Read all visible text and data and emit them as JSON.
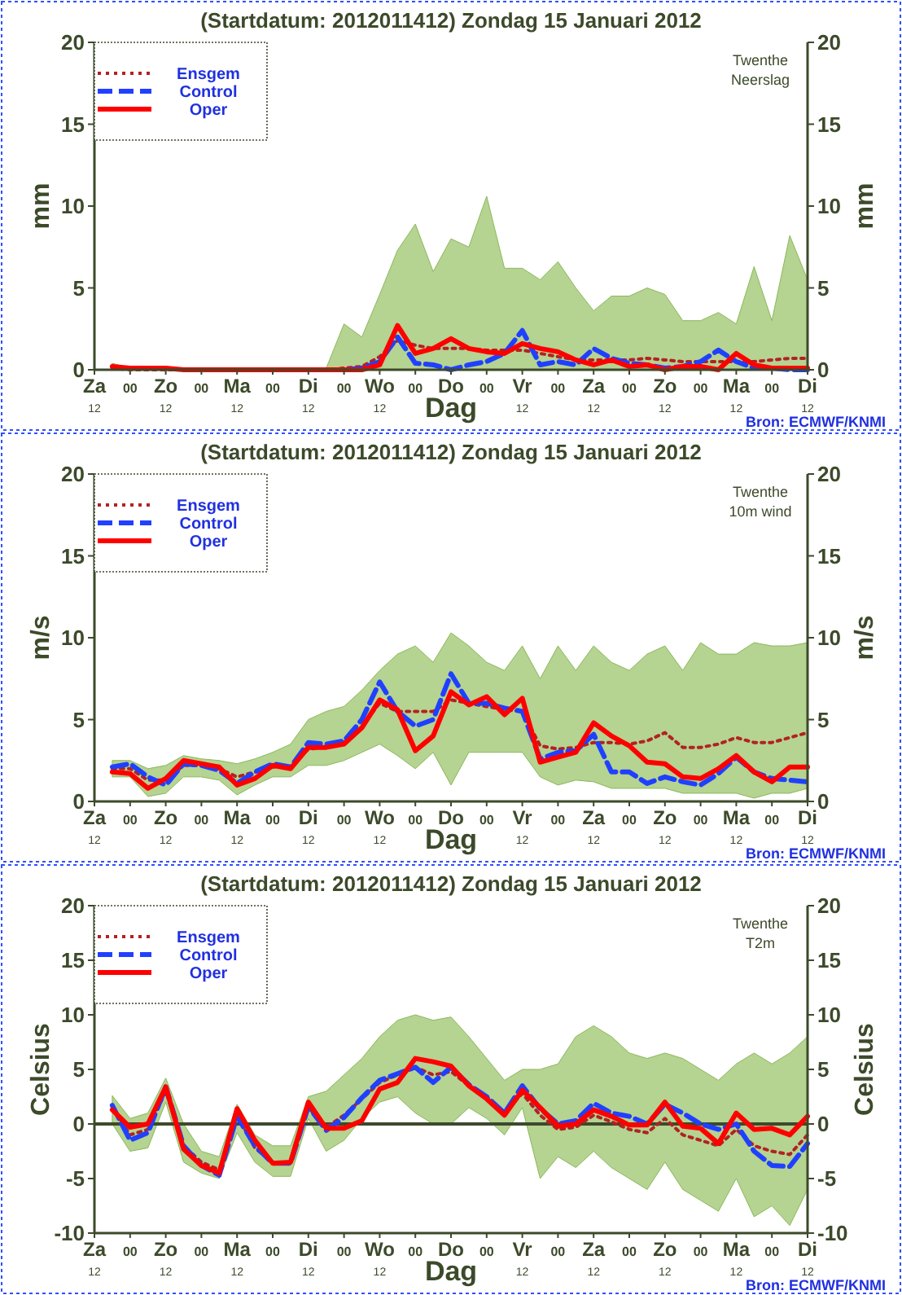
{
  "chart_data": [
    {
      "type": "line",
      "title": "(Startdatum: 2012011412)   Zondag    15 Januari   2012",
      "xlabel": "Dag",
      "ylabel": "mm",
      "y2label": "mm",
      "legend": "top left",
      "annotations": [
        "Twenthe",
        "Neerslag",
        "Bron: ECMWF/KNMI"
      ],
      "ylim": [
        0,
        20
      ],
      "yticks": [
        0,
        5,
        10,
        15,
        20
      ],
      "y2lim": [
        0,
        20
      ],
      "y2ticks": [
        0,
        5,
        10,
        15,
        20
      ],
      "categories": [
        "Za$_{12}$",
        null,
        "00",
        null,
        "Zo$_{12}$",
        null,
        "00",
        null,
        "Ma$_{12}$",
        null,
        "00",
        null,
        "Di$_{12}$",
        null,
        "00",
        null,
        "Wo$_{12}$",
        null,
        "00",
        null,
        "Do",
        null,
        "00",
        null,
        "Vr$_{12}$",
        null,
        "00",
        null,
        "Za$_{12}$",
        null,
        "00",
        null,
        "Zo$_{12}$",
        null,
        "00",
        null,
        "Ma$_{12}$",
        null,
        "00",
        null,
        "Di$_{12}$"
      ],
      "series": [
        {
          "name": "Ensgem",
          "color": "#b22222",
          "line_style": "dotted",
          "values": [
            null,
            0.1,
            0,
            0,
            0,
            0,
            0,
            0,
            0,
            0,
            0,
            0,
            0,
            0,
            0.1,
            0.2,
            0.8,
            1.8,
            1.5,
            1.3,
            1.3,
            1.3,
            1.2,
            1.2,
            1.2,
            1.0,
            0.8,
            0.6,
            0.6,
            0.6,
            0.6,
            0.7,
            0.6,
            0.5,
            0.5,
            0.5,
            0.5,
            0.5,
            0.6,
            0.7,
            0.7
          ],
          "lower": [
            null,
            0,
            0,
            0,
            0,
            0,
            0,
            0,
            0,
            0,
            0,
            0,
            0,
            0,
            0,
            0,
            0,
            0,
            0,
            0,
            0,
            0,
            0,
            0,
            0,
            0,
            0,
            0,
            0,
            0,
            0,
            0,
            0,
            0,
            0,
            0,
            0,
            0,
            0,
            0,
            0
          ],
          "upper": [
            null,
            0.4,
            0.1,
            0.1,
            0.1,
            0.1,
            0.1,
            0.1,
            0.1,
            0.1,
            0.1,
            0.1,
            0.1,
            0.1,
            2.8,
            2.0,
            4.6,
            7.3,
            8.9,
            6.0,
            8.0,
            7.5,
            10.6,
            6.2,
            6.2,
            5.5,
            6.6,
            5.0,
            3.6,
            4.5,
            4.5,
            5.0,
            4.6,
            3.0,
            3.0,
            3.5,
            2.8,
            6.3,
            3.0,
            8.2,
            5.5
          ]
        },
        {
          "name": "Control",
          "color": "#2040ff",
          "line_style": "dashed",
          "values": [
            null,
            null,
            null,
            null,
            null,
            null,
            null,
            null,
            null,
            null,
            null,
            null,
            null,
            0,
            0,
            0.1,
            0.5,
            2.0,
            0.4,
            0.3,
            0,
            0.3,
            0.5,
            1.0,
            2.4,
            0.3,
            0.5,
            0.3,
            1.3,
            0.7,
            0.4,
            0.3,
            0.1,
            0.2,
            0.5,
            1.2,
            0.5,
            0.1,
            0.1,
            0,
            0
          ]
        },
        {
          "name": "Oper",
          "color": "#ff0000",
          "line_style": "solid",
          "values": [
            null,
            0.2,
            0.1,
            0.1,
            0.1,
            0,
            0,
            0,
            0,
            0,
            0,
            0,
            0,
            0,
            0,
            0,
            0.3,
            2.7,
            1.0,
            1.3,
            1.9,
            1.3,
            1.1,
            1.0,
            1.6,
            1.3,
            1.1,
            0.6,
            0.3,
            0.6,
            0.2,
            0.3,
            0,
            0.2,
            0.2,
            0,
            1.0,
            0.3,
            0.1,
            0.1,
            0.1
          ]
        }
      ]
    },
    {
      "type": "line",
      "title": "(Startdatum: 2012011412)   Zondag    15 Januari   2012",
      "xlabel": "Dag",
      "ylabel": "m/s",
      "y2label": "m/s",
      "legend": "top left",
      "annotations": [
        "Twenthe",
        "10m wind",
        "Bron: ECMWF/KNMI"
      ],
      "ylim": [
        0,
        20
      ],
      "yticks": [
        0,
        5,
        10,
        15,
        20
      ],
      "y2lim": [
        0,
        20
      ],
      "y2ticks": [
        0,
        5,
        10,
        15,
        20
      ],
      "categories": [
        "Za$_{12}$",
        null,
        "00",
        null,
        "Zo$_{12}$",
        null,
        "00",
        null,
        "Ma$_{12}$",
        null,
        "00",
        null,
        "Di$_{12}$",
        null,
        "00",
        null,
        "Wo$_{12}$",
        null,
        "00",
        null,
        "Do",
        null,
        "00",
        null,
        "Vr$_{12}$",
        null,
        "00",
        null,
        "Za$_{12}$",
        null,
        "00",
        null,
        "Zo$_{12}$",
        null,
        "00",
        null,
        "Ma$_{12}$",
        null,
        "00",
        null,
        "Di$_{12}$"
      ],
      "series": [
        {
          "name": "Ensgem",
          "color": "#b22222",
          "line_style": "dotted",
          "values": [
            null,
            2.0,
            2.0,
            1.3,
            1.3,
            2.2,
            2.2,
            2.0,
            1.5,
            1.8,
            2.1,
            2.1,
            3.2,
            3.3,
            3.6,
            4.6,
            6.0,
            5.5,
            5.5,
            5.5,
            6.2,
            6.0,
            5.8,
            5.6,
            5.5,
            3.4,
            3.2,
            3.3,
            3.6,
            3.6,
            3.5,
            3.7,
            4.2,
            3.3,
            3.3,
            3.5,
            3.9,
            3.6,
            3.6,
            3.9,
            4.2
          ],
          "lower": [
            null,
            1.5,
            1.5,
            0.3,
            0.5,
            1.5,
            1.5,
            1.3,
            0.4,
            1.0,
            1.5,
            1.5,
            2.2,
            2.2,
            2.5,
            3.0,
            3.5,
            2.8,
            2.0,
            3.0,
            1.0,
            3.0,
            3.0,
            3.0,
            3.0,
            1.5,
            1.0,
            1.3,
            1.2,
            0.8,
            0.8,
            0.8,
            0.8,
            0.5,
            0.5,
            0.5,
            0.5,
            0.2,
            0.5,
            0.5,
            0.8
          ],
          "upper": [
            null,
            2.5,
            2.5,
            2.0,
            2.2,
            2.8,
            2.6,
            2.5,
            2.3,
            2.6,
            3.0,
            3.5,
            5.0,
            5.5,
            5.8,
            6.8,
            8.0,
            9.0,
            9.5,
            8.5,
            10.3,
            9.5,
            8.5,
            8.0,
            9.5,
            7.5,
            9.5,
            8.0,
            9.5,
            8.5,
            8.0,
            9.0,
            9.5,
            8.0,
            9.7,
            9.0,
            9.0,
            9.7,
            9.5,
            9.5,
            9.7
          ]
        },
        {
          "name": "Control",
          "color": "#2040ff",
          "line_style": "dashed",
          "values": [
            null,
            2.1,
            2.3,
            1.5,
            1.0,
            2.3,
            2.2,
            1.9,
            1.1,
            1.8,
            2.3,
            2.1,
            3.6,
            3.5,
            3.7,
            5.0,
            7.3,
            5.5,
            4.6,
            5.0,
            7.8,
            6.0,
            6.0,
            5.7,
            5.5,
            2.6,
            3.0,
            3.1,
            4.1,
            1.8,
            1.8,
            1.1,
            1.5,
            1.2,
            1.0,
            1.7,
            2.7,
            1.8,
            1.4,
            1.3,
            1.2
          ]
        },
        {
          "name": "Oper",
          "color": "#ff0000",
          "line_style": "solid",
          "values": [
            null,
            1.8,
            1.7,
            0.8,
            1.4,
            2.5,
            2.3,
            2.1,
            1.0,
            1.4,
            2.2,
            2.0,
            3.3,
            3.3,
            3.5,
            4.5,
            6.2,
            5.6,
            3.1,
            4.0,
            6.7,
            5.9,
            6.4,
            5.3,
            6.3,
            2.4,
            2.7,
            3.0,
            4.8,
            4.0,
            3.4,
            2.4,
            2.3,
            1.5,
            1.4,
            2.0,
            2.8,
            1.8,
            1.2,
            2.1,
            2.1
          ]
        }
      ]
    },
    {
      "type": "line",
      "title": "(Startdatum: 2012011412)   Zondag    15 Januari   2012",
      "xlabel": "Dag",
      "ylabel": "Celsius",
      "y2label": "Celsius",
      "legend": "top left",
      "annotations": [
        "Twenthe",
        "T2m",
        "Bron: ECMWF/KNMI"
      ],
      "ref_lines": [
        {
          "axis": "y",
          "value": 0,
          "color": "#3c4a2a"
        }
      ],
      "ylim": [
        -10,
        20
      ],
      "yticks": [
        -10,
        -5,
        0,
        5,
        10,
        15,
        20
      ],
      "y2lim": [
        -10,
        20
      ],
      "y2ticks": [
        -10,
        -5,
        0,
        5,
        10,
        15,
        20
      ],
      "categories": [
        "Za$_{12}$",
        null,
        "00",
        null,
        "Zo$_{12}$",
        null,
        "00",
        null,
        "Ma$_{12}$",
        null,
        "00",
        null,
        "Di$_{12}$",
        null,
        "00",
        null,
        "Wo$_{12}$",
        null,
        "00",
        null,
        "Do",
        null,
        "00",
        null,
        "Vr$_{12}$",
        null,
        "00",
        null,
        "Za$_{12}$",
        null,
        "00",
        null,
        "Zo$_{12}$",
        null,
        "00",
        null,
        "Ma$_{12}$",
        null,
        "00",
        null,
        "Di$_{12}$"
      ],
      "series": [
        {
          "name": "Ensgem",
          "color": "#b22222",
          "line_style": "dotted",
          "values": [
            null,
            1.5,
            -1.0,
            -0.5,
            3.0,
            -2.0,
            -3.5,
            -4.2,
            0.8,
            -2.2,
            -3.5,
            -3.5,
            1.5,
            -0.3,
            0.8,
            2.3,
            3.8,
            4.5,
            5.2,
            4.5,
            4.8,
            3.5,
            2.5,
            1.0,
            2.8,
            0.8,
            -0.5,
            -0.3,
            0.8,
            0.2,
            -0.5,
            -0.8,
            0.5,
            -1.0,
            -1.5,
            -2.0,
            -0.5,
            -2.0,
            -2.5,
            -2.8,
            -1.0
          ],
          "lower": [
            null,
            0.0,
            -2.5,
            -2.2,
            2.0,
            -3.5,
            -4.5,
            -5.0,
            -0.8,
            -3.5,
            -4.8,
            -4.8,
            0.5,
            -2.5,
            -1.5,
            0.5,
            2.0,
            2.5,
            1.0,
            0.0,
            0.0,
            1.5,
            0.5,
            -1.0,
            1.5,
            -5.0,
            -3.0,
            -4.0,
            -2.5,
            -4.0,
            -5.0,
            -6.0,
            -3.5,
            -6.0,
            -7.0,
            -8.0,
            -5.0,
            -8.5,
            -7.5,
            -9.3,
            -6.0
          ],
          "upper": [
            null,
            2.6,
            0.5,
            1.0,
            4.2,
            0.0,
            -2.5,
            -3.0,
            1.8,
            -1.0,
            -2.0,
            -2.0,
            2.5,
            3.0,
            4.5,
            6.0,
            8.0,
            9.5,
            10.0,
            9.5,
            9.8,
            8.0,
            6.0,
            4.0,
            5.0,
            5.0,
            5.5,
            8.0,
            9.0,
            8.0,
            6.5,
            6.0,
            6.5,
            6.0,
            5.0,
            4.0,
            5.5,
            6.5,
            5.5,
            6.5,
            8.0
          ]
        },
        {
          "name": "Control",
          "color": "#2040ff",
          "line_style": "dashed",
          "values": [
            null,
            1.7,
            -1.5,
            -0.8,
            3.4,
            -2.0,
            -3.8,
            -4.7,
            0.7,
            -2.0,
            -3.6,
            -3.6,
            1.6,
            -0.6,
            0.6,
            2.4,
            4.0,
            4.6,
            5.2,
            3.8,
            5.2,
            3.6,
            2.5,
            1.0,
            3.5,
            1.4,
            0.0,
            0.3,
            1.9,
            1.0,
            0.7,
            0.0,
            1.8,
            1.0,
            0.0,
            -0.5,
            0.0,
            -2.5,
            -3.8,
            -3.9,
            -1.8
          ]
        },
        {
          "name": "Oper",
          "color": "#ff0000",
          "line_style": "solid",
          "values": [
            null,
            1.3,
            -0.3,
            0.0,
            3.4,
            -2.3,
            -3.8,
            -4.5,
            1.4,
            -1.5,
            -3.6,
            -3.5,
            2.0,
            -0.4,
            -0.4,
            0.3,
            3.2,
            3.8,
            6.0,
            5.7,
            5.3,
            3.5,
            2.3,
            0.8,
            3.1,
            1.5,
            -0.2,
            0.0,
            1.3,
            0.7,
            -0.1,
            -0.1,
            2.0,
            -0.2,
            -0.4,
            -1.8,
            1.0,
            -0.5,
            -0.4,
            -1.0,
            0.7
          ]
        }
      ]
    }
  ]
}
